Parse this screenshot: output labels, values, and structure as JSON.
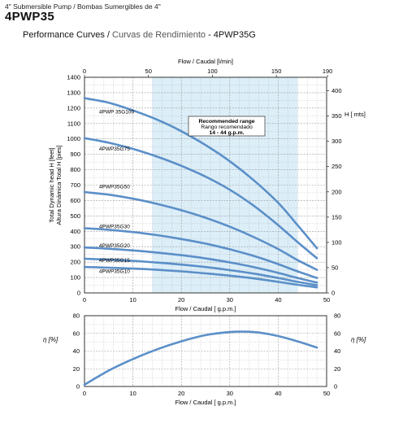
{
  "header": {
    "subtitle": "4\" Submersible Pump / Bombas Sumergibles de 4\"",
    "model": "4PWP35",
    "perf_en": "Performance Curves /",
    "perf_es": "Curvas de Rendimiento",
    "perf_model": "- 4PWP35G"
  },
  "colors": {
    "curve": "#5b8fc8",
    "band": "#dceef8",
    "grid": "#9a9a9a"
  },
  "chart_data": [
    {
      "type": "line",
      "x_label": "Flow / Caudal [ g.p.m.]",
      "x2_label": "Flow / Caudal [l/min]",
      "y_label": "Total Dynamic head H [feet]",
      "y_label2": "Altura Dinámica Total H [pies]",
      "y2_label": "H [ mts]",
      "xlim": [
        0,
        50
      ],
      "ylim": [
        0,
        1400
      ],
      "x_ticks": [
        0,
        10,
        20,
        30,
        40,
        50
      ],
      "y_ticks": [
        0,
        100,
        200,
        300,
        400,
        500,
        600,
        700,
        800,
        900,
        1000,
        1100,
        1200,
        1300,
        1400
      ],
      "x2_lim": [
        0,
        189.3
      ],
      "x2_ticks": [
        0,
        50,
        100,
        150,
        190
      ],
      "y2_lim": [
        0,
        426.7
      ],
      "y2_ticks": [
        0,
        50,
        100,
        150,
        200,
        250,
        300,
        350,
        400
      ],
      "band": {
        "x": [
          14,
          44
        ],
        "title": "Recommended range",
        "subtitle": "Rango recomendado",
        "range": "14 - 44 g.p.m."
      },
      "series": [
        {
          "name": "4PWP 35G100",
          "label_at": [
            3,
            1165
          ],
          "points": [
            [
              0,
              1265
            ],
            [
              5,
              1235
            ],
            [
              10,
              1185
            ],
            [
              15,
              1125
            ],
            [
              20,
              1050
            ],
            [
              25,
              960
            ],
            [
              30,
              855
            ],
            [
              35,
              730
            ],
            [
              40,
              585
            ],
            [
              44,
              440
            ],
            [
              48,
              290
            ]
          ]
        },
        {
          "name": "4PWP35G75",
          "label_at": [
            3,
            925
          ],
          "points": [
            [
              0,
              1005
            ],
            [
              5,
              975
            ],
            [
              10,
              935
            ],
            [
              15,
              885
            ],
            [
              20,
              825
            ],
            [
              25,
              755
            ],
            [
              30,
              670
            ],
            [
              35,
              565
            ],
            [
              40,
              440
            ],
            [
              44,
              330
            ],
            [
              48,
              225
            ]
          ]
        },
        {
          "name": "4PWP35G50",
          "label_at": [
            3,
            680
          ],
          "points": [
            [
              0,
              655
            ],
            [
              5,
              638
            ],
            [
              10,
              612
            ],
            [
              15,
              578
            ],
            [
              20,
              537
            ],
            [
              25,
              488
            ],
            [
              30,
              430
            ],
            [
              35,
              362
            ],
            [
              40,
              285
            ],
            [
              44,
              213
            ],
            [
              48,
              150
            ]
          ]
        },
        {
          "name": "4PWP35G30",
          "label_at": [
            3,
            420
          ],
          "points": [
            [
              0,
              420
            ],
            [
              5,
              410
            ],
            [
              10,
              395
            ],
            [
              15,
              375
            ],
            [
              20,
              350
            ],
            [
              25,
              320
            ],
            [
              30,
              283
            ],
            [
              35,
              240
            ],
            [
              40,
              187
            ],
            [
              44,
              140
            ],
            [
              48,
              97
            ]
          ]
        },
        {
          "name": "4PWP35G20",
          "label_at": [
            3,
            295
          ],
          "points": [
            [
              0,
              295
            ],
            [
              5,
              287
            ],
            [
              10,
              276
            ],
            [
              15,
              262
            ],
            [
              20,
              245
            ],
            [
              25,
              224
            ],
            [
              30,
              198
            ],
            [
              35,
              167
            ],
            [
              40,
              130
            ],
            [
              44,
              97
            ],
            [
              48,
              67
            ]
          ]
        },
        {
          "name": "4PWP35G15",
          "label_at": [
            3,
            200
          ],
          "points": [
            [
              0,
              222
            ],
            [
              5,
              216
            ],
            [
              10,
              208
            ],
            [
              15,
              197
            ],
            [
              20,
              184
            ],
            [
              25,
              168
            ],
            [
              30,
              148
            ],
            [
              35,
              125
            ],
            [
              40,
              97
            ],
            [
              44,
              72
            ],
            [
              48,
              50
            ]
          ]
        },
        {
          "name": "4PWP35G10",
          "label_at": [
            3,
            130
          ],
          "points": [
            [
              0,
              168
            ],
            [
              5,
              164
            ],
            [
              10,
              158
            ],
            [
              15,
              150
            ],
            [
              20,
              140
            ],
            [
              25,
              127
            ],
            [
              30,
              112
            ],
            [
              35,
              94
            ],
            [
              40,
              72
            ],
            [
              44,
              53
            ],
            [
              48,
              36
            ]
          ]
        }
      ]
    },
    {
      "type": "line",
      "x_label": "Flow / Caudal [ g.p.m.]",
      "y_label": "η [%]",
      "y2_label": "η [%]",
      "xlim": [
        0,
        50
      ],
      "ylim": [
        0,
        80
      ],
      "x_ticks": [
        0,
        10,
        20,
        30,
        40,
        50
      ],
      "y_ticks": [
        0,
        20,
        40,
        60,
        80
      ],
      "series": [
        {
          "name": "efficiency",
          "points": [
            [
              0,
              2
            ],
            [
              5,
              18
            ],
            [
              10,
              31
            ],
            [
              15,
              42
            ],
            [
              20,
              51
            ],
            [
              25,
              58
            ],
            [
              30,
              61.5
            ],
            [
              33,
              62
            ],
            [
              36,
              61
            ],
            [
              40,
              57
            ],
            [
              44,
              51
            ],
            [
              48,
              44
            ]
          ]
        }
      ]
    }
  ]
}
